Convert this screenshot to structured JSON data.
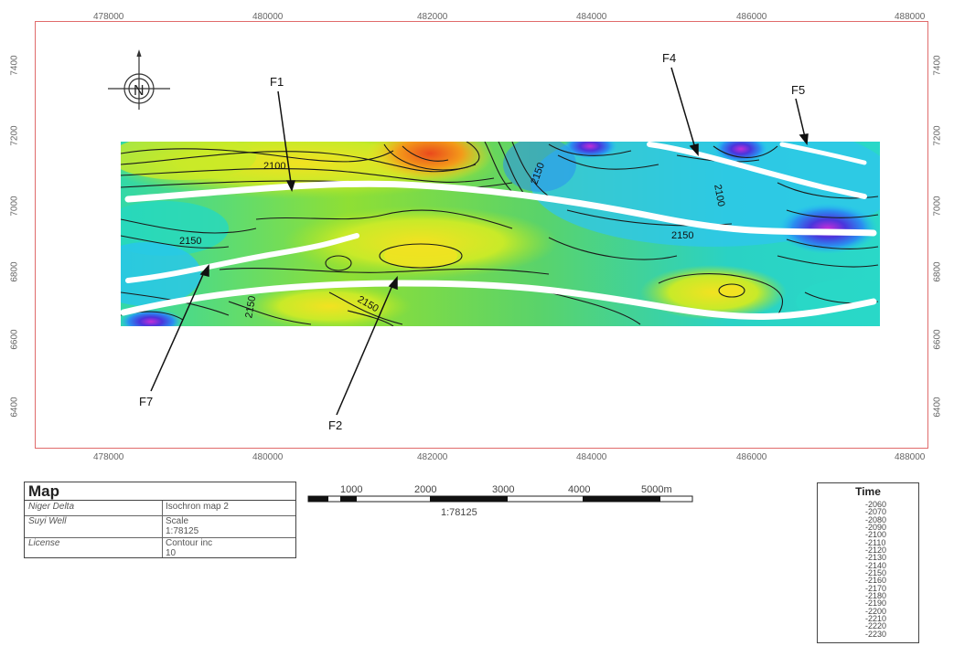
{
  "map": {
    "x_ticks_top": [
      "478000",
      "480000",
      "482000",
      "484000",
      "486000",
      "488000"
    ],
    "x_ticks_bottom": [
      "478000",
      "480000",
      "482000",
      "484000",
      "486000",
      "488000"
    ],
    "y_ticks_left": [
      "7400",
      "7200",
      "7000",
      "6800",
      "6600",
      "6400"
    ],
    "y_ticks_right": [
      "7400",
      "7200",
      "7000",
      "6800",
      "6600",
      "6400"
    ],
    "contour_labels": [
      "2100",
      "2150",
      "2150",
      "2100",
      "2150",
      "2150",
      "2150"
    ],
    "compass_label": "N",
    "faults": [
      "F1",
      "F2",
      "F4",
      "F5",
      "F7"
    ]
  },
  "info_table": {
    "title": "Map",
    "rows": [
      {
        "left": "Niger Delta",
        "right": "Isochron map 2"
      },
      {
        "left": "Suyi Well",
        "right": "Scale\n1:78125"
      },
      {
        "left": "License",
        "right": "Contour inc\n10"
      }
    ]
  },
  "scale_bar": {
    "labels": [
      "1000",
      "2000",
      "3000",
      "4000",
      "5000m"
    ],
    "ratio": "1:78125"
  },
  "legend": {
    "title": "Time",
    "values": [
      "-2060",
      "-2070",
      "-2080",
      "-2090",
      "-2100",
      "-2110",
      "-2120",
      "-2130",
      "-2140",
      "-2150",
      "-2160",
      "-2170",
      "-2180",
      "-2190",
      "-2200",
      "-2210",
      "-2220",
      "-2230"
    ],
    "colors": [
      "#e8401c",
      "#f07a1a",
      "#f4b21c",
      "#f3e21f",
      "#c9ec28",
      "#9fe22d",
      "#7fd93a",
      "#53d24e",
      "#31d57e",
      "#28d9ae",
      "#25e0d6",
      "#23c8f0",
      "#2a9cf2",
      "#2a6be8",
      "#3a3ed8",
      "#7a31d8",
      "#b22ed8",
      "#e02ce0"
    ]
  }
}
